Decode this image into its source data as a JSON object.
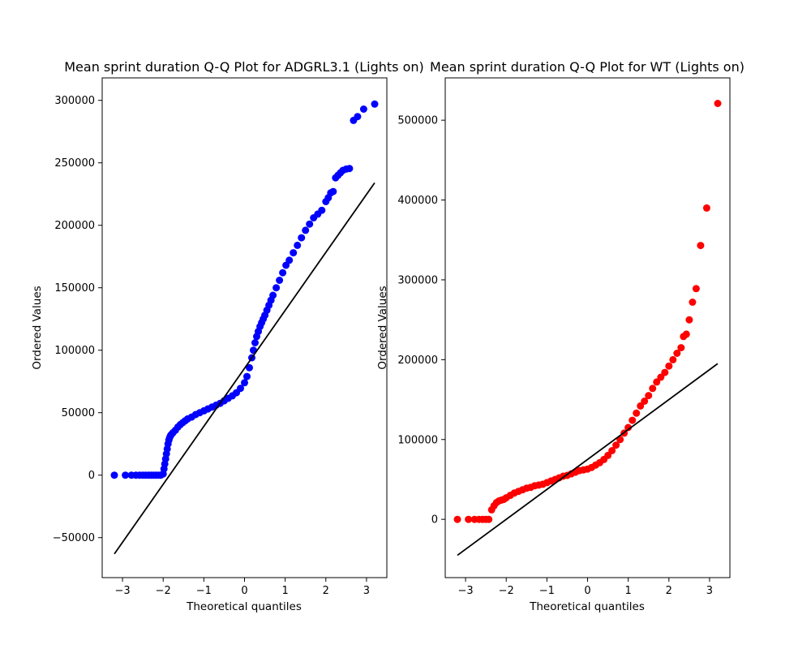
{
  "chart_data": [
    {
      "type": "scatter",
      "title": "Mean sprint duration Q-Q Plot for ADGRL3.1 (Lights on)",
      "xlabel": "Theoretical quantiles",
      "ylabel": "Ordered Values",
      "xlim": [
        -3.5,
        3.5
      ],
      "ylim": [
        -82000,
        318000
      ],
      "xticks": [
        -3,
        -2,
        -1,
        0,
        1,
        2,
        3
      ],
      "yticks": [
        -50000,
        0,
        50000,
        100000,
        150000,
        200000,
        250000,
        300000
      ],
      "marker_color": "#0000ff",
      "line_color": "#000000",
      "grid": false,
      "fit_line": {
        "x": [
          -3.2,
          3.2
        ],
        "y": [
          -63000,
          234000
        ]
      },
      "points": {
        "x": [
          -3.2,
          -2.93,
          -2.78,
          -2.67,
          -2.58,
          -2.5,
          -2.43,
          -2.36,
          -2.3,
          -2.24,
          -2.18,
          -2.12,
          -2.06,
          -2.0,
          -1.98,
          -1.96,
          -1.94,
          -1.92,
          -1.9,
          -1.88,
          -1.86,
          -1.84,
          -1.82,
          -1.8,
          -1.76,
          -1.7,
          -1.64,
          -1.58,
          -1.52,
          -1.46,
          -1.4,
          -1.3,
          -1.2,
          -1.1,
          -1.0,
          -0.9,
          -0.8,
          -0.7,
          -0.6,
          -0.5,
          -0.4,
          -0.3,
          -0.2,
          -0.1,
          0.0,
          0.06,
          0.12,
          0.18,
          0.22,
          0.26,
          0.3,
          0.34,
          0.38,
          0.42,
          0.46,
          0.5,
          0.55,
          0.6,
          0.65,
          0.7,
          0.78,
          0.86,
          0.94,
          1.02,
          1.1,
          1.2,
          1.3,
          1.4,
          1.5,
          1.6,
          1.7,
          1.8,
          1.9,
          2.0,
          2.06,
          2.12,
          2.18,
          2.24,
          2.3,
          2.36,
          2.42,
          2.5,
          2.58,
          2.68,
          2.78,
          2.93,
          3.2
        ],
        "y": [
          0,
          0,
          0,
          0,
          0,
          0,
          0,
          0,
          0,
          0,
          0,
          0,
          0,
          1000,
          5000,
          9000,
          13000,
          17000,
          21000,
          25000,
          28000,
          30000,
          31500,
          32500,
          34000,
          36000,
          38500,
          40500,
          42000,
          43500,
          45000,
          46500,
          48500,
          50000,
          51500,
          53000,
          54500,
          56000,
          57500,
          59500,
          61500,
          63500,
          66000,
          69500,
          74000,
          79000,
          86000,
          94000,
          100000,
          106000,
          111000,
          115000,
          119000,
          122000,
          125000,
          128000,
          132000,
          136000,
          140000,
          144000,
          150000,
          156000,
          162000,
          168000,
          172000,
          178000,
          184000,
          190000,
          196000,
          201000,
          206000,
          209000,
          212000,
          219000,
          222000,
          226000,
          227000,
          238000,
          240000,
          242000,
          244000,
          245000,
          245500,
          284000,
          287000,
          293000,
          297000
        ]
      }
    },
    {
      "type": "scatter",
      "title": "Mean sprint duration Q-Q Plot for WT (Lights on)",
      "xlabel": "Theoretical quantiles",
      "ylabel": "Ordered Values",
      "xlim": [
        -3.5,
        3.5
      ],
      "ylim": [
        -73000,
        553000
      ],
      "xticks": [
        -3,
        -2,
        -1,
        0,
        1,
        2,
        3
      ],
      "yticks": [
        0,
        100000,
        200000,
        300000,
        400000,
        500000
      ],
      "marker_color": "#ff0000",
      "line_color": "#000000",
      "grid": false,
      "fit_line": {
        "x": [
          -3.2,
          3.2
        ],
        "y": [
          -45000,
          195000
        ]
      },
      "points": {
        "x": [
          -3.2,
          -2.93,
          -2.78,
          -2.67,
          -2.58,
          -2.5,
          -2.43,
          -2.36,
          -2.3,
          -2.24,
          -2.18,
          -2.12,
          -2.06,
          -2.0,
          -1.9,
          -1.8,
          -1.7,
          -1.6,
          -1.5,
          -1.4,
          -1.3,
          -1.2,
          -1.1,
          -1.0,
          -0.9,
          -0.8,
          -0.7,
          -0.6,
          -0.5,
          -0.4,
          -0.3,
          -0.2,
          -0.1,
          0.0,
          0.1,
          0.2,
          0.3,
          0.4,
          0.5,
          0.6,
          0.7,
          0.8,
          0.9,
          1.0,
          1.1,
          1.2,
          1.3,
          1.4,
          1.5,
          1.6,
          1.7,
          1.8,
          1.9,
          2.0,
          2.1,
          2.2,
          2.3,
          2.36,
          2.43,
          2.5,
          2.58,
          2.67,
          2.78,
          2.93,
          3.2
        ],
        "y": [
          0,
          0,
          0,
          0,
          0,
          0,
          0,
          12000,
          17000,
          21000,
          23000,
          24000,
          25000,
          27000,
          30000,
          33000,
          35000,
          37000,
          39000,
          40000,
          42000,
          43000,
          44000,
          46000,
          48000,
          50000,
          52000,
          54000,
          55000,
          57000,
          59000,
          61000,
          62000,
          63000,
          65000,
          68000,
          71000,
          75000,
          80000,
          86000,
          93000,
          100000,
          108000,
          115000,
          124000,
          133000,
          142000,
          148000,
          155000,
          164000,
          172000,
          178000,
          184000,
          192000,
          200000,
          208000,
          215000,
          229000,
          232000,
          250000,
          272000,
          289000,
          343000,
          390000,
          521000
        ]
      }
    }
  ]
}
